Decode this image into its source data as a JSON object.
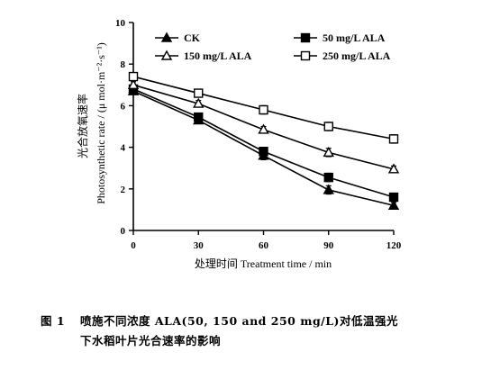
{
  "chart_data": {
    "type": "line",
    "x": [
      0,
      30,
      60,
      90,
      120
    ],
    "xticks": [
      "0",
      "30",
      "60",
      "90",
      "120"
    ],
    "xlim": [
      0,
      120
    ],
    "yticks": [
      "0",
      "2",
      "4",
      "6",
      "8",
      "10"
    ],
    "ylim": [
      0,
      10
    ],
    "xlabel": "处理时间 Treatment time / min",
    "ylabel_cn": "光合放氧速率",
    "ylabel_en": "Photosynthetic rate / (μ mol·m⁻²·s⁻¹)",
    "legend_position": "top",
    "grid": false,
    "series": [
      {
        "name": "CK",
        "marker": "triangle-filled",
        "values": [
          6.7,
          5.3,
          3.6,
          1.95,
          1.2
        ],
        "errors": [
          0.15,
          0.15,
          0.2,
          0.2,
          0.15
        ]
      },
      {
        "name": "50 mg/L ALA",
        "marker": "square-filled",
        "values": [
          6.8,
          5.45,
          3.8,
          2.55,
          1.6
        ],
        "errors": [
          0.15,
          0.15,
          0.2,
          0.2,
          0.15
        ]
      },
      {
        "name": "150 mg/L ALA",
        "marker": "triangle-open",
        "values": [
          7.0,
          6.1,
          4.85,
          3.75,
          2.95
        ],
        "errors": [
          0.15,
          0.15,
          0.15,
          0.2,
          0.15
        ]
      },
      {
        "name": "250 mg/L ALA",
        "marker": "square-open",
        "values": [
          7.4,
          6.6,
          5.8,
          5.0,
          4.4
        ],
        "errors": [
          0.15,
          0.15,
          0.2,
          0.2,
          0.2
        ]
      }
    ]
  },
  "caption": {
    "fig_number": "图 1",
    "line1": "喷施不同浓度 ALA(50, 150 and 250 mg/L)对低温强光",
    "line2": "下水稻叶片光合速率的影响"
  }
}
